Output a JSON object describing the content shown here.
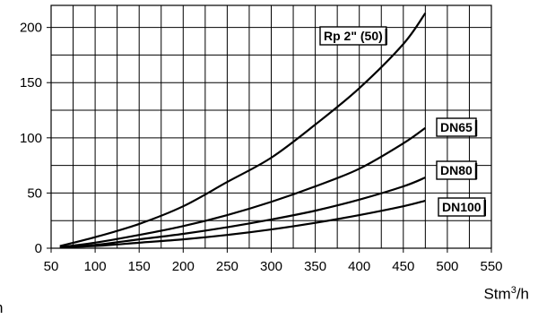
{
  "chart_data": {
    "type": "line",
    "title": "",
    "xlabel": "",
    "ylabel": "",
    "x_unit": {
      "base": "Stm",
      "sup": "3",
      "suffix": "/h"
    },
    "edge_text": "h",
    "xlim": [
      50,
      550
    ],
    "ylim": [
      0,
      220
    ],
    "x_major": 50,
    "x_minor": 25,
    "y_major": 50,
    "y_minor": 25,
    "x_ticks": [
      "50",
      "100",
      "150",
      "200",
      "250",
      "300",
      "350",
      "400",
      "450",
      "500",
      "550"
    ],
    "y_ticks": [
      "0",
      "50",
      "100",
      "150",
      "200"
    ],
    "grid": true,
    "legend": "inline-labels",
    "series": [
      {
        "name": "Rp 2\" (50)",
        "x": [
          60,
          100,
          150,
          200,
          250,
          300,
          350,
          400,
          450,
          475
        ],
        "y": [
          2,
          10,
          22,
          38,
          60,
          82,
          112,
          145,
          185,
          213
        ]
      },
      {
        "name": "DN65",
        "x": [
          60,
          100,
          150,
          200,
          250,
          300,
          350,
          400,
          450,
          475
        ],
        "y": [
          1,
          5,
          12,
          20,
          30,
          42,
          56,
          72,
          95,
          109
        ]
      },
      {
        "name": "DN80",
        "x": [
          60,
          100,
          150,
          200,
          250,
          300,
          350,
          400,
          450,
          475
        ],
        "y": [
          1,
          3,
          8,
          13,
          19,
          26,
          34,
          44,
          56,
          64
        ]
      },
      {
        "name": "DN100",
        "x": [
          60,
          100,
          150,
          200,
          250,
          300,
          350,
          400,
          450,
          475
        ],
        "y": [
          1,
          2,
          5,
          8,
          12,
          17,
          23,
          30,
          38,
          43
        ]
      }
    ]
  }
}
